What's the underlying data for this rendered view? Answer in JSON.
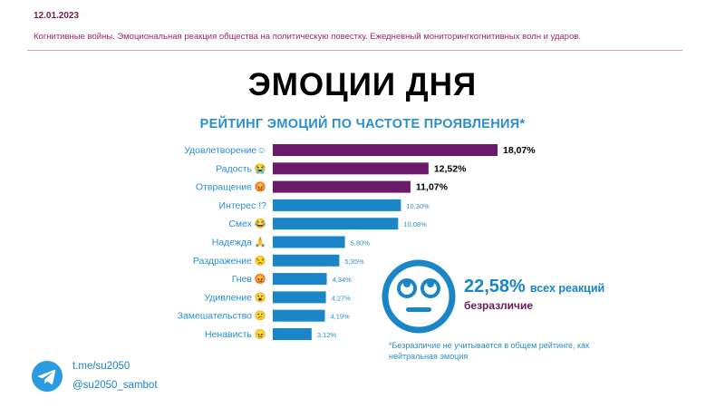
{
  "header": {
    "date": "12.01.2023",
    "subtitle": "Когнитивные войны. Эмоциональная реакция общества на политическую повестку. Ежедневный мониторингкогнитивных волн и ударов."
  },
  "page_title": "ЭМОЦИИ ДНЯ",
  "colors": {
    "purple": "#6b1a6b",
    "blue": "#1a86c8",
    "pink": "#d99ab9"
  },
  "chart_data": {
    "type": "bar",
    "orientation": "horizontal",
    "title": "РЕЙТИНГ ЭМОЦИЙ ПО ЧАСТОТЕ ПРОЯВЛЕНИЯ*",
    "categories": [
      "Удовлетворение☺",
      "Радость 😭",
      "Отвращение 😡",
      "Интерес !?",
      "Смех 😂",
      "Надежда 🙏",
      "Раздражение 😒",
      "Гнев 😡",
      "Удивление 😮",
      "Замешательство 😕",
      "Ненависть 😠"
    ],
    "values": [
      18.07,
      12.52,
      11.07,
      10.3,
      10.08,
      5.8,
      5.35,
      4.34,
      4.27,
      4.19,
      3.12
    ],
    "value_labels": [
      "18,07%",
      "12,52%",
      "11,07%",
      "10,30%",
      "10,08%",
      "5,80%",
      "5,35%",
      "4,34%",
      "4,27%",
      "4,19%",
      "3,12%"
    ],
    "highlight_top": 3,
    "xlim": [
      0,
      18.07
    ],
    "grid": false,
    "legend": "none"
  },
  "neutral": {
    "value": "22,58%",
    "suffix": "всех реакций",
    "label": "безразличие",
    "footnote": "*Безразличие не учитывается в общем рейтинге, как нейтральная эмоция"
  },
  "footer": {
    "telegram_icon": "telegram-icon",
    "channel": "t.me/su2050",
    "bot": "@su2050_sambot"
  }
}
